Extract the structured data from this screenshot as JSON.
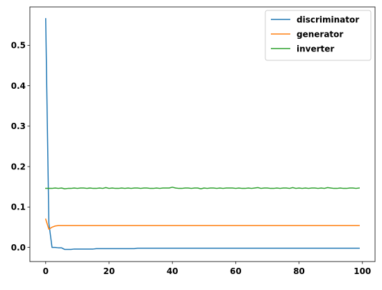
{
  "chart_data": {
    "type": "line",
    "title": "",
    "xlabel": "",
    "ylabel": "",
    "xlim": [
      -5,
      104
    ],
    "ylim": [
      -0.035,
      0.595
    ],
    "x_ticks": [
      0,
      20,
      40,
      60,
      80,
      100
    ],
    "y_ticks": [
      0.0,
      0.1,
      0.2,
      0.3,
      0.4,
      0.5
    ],
    "x_tick_labels": [
      "0",
      "20",
      "40",
      "60",
      "80",
      "100"
    ],
    "y_tick_labels": [
      "0.0",
      "0.1",
      "0.2",
      "0.3",
      "0.4",
      "0.5"
    ],
    "grid": false,
    "legend_position": "top-right",
    "x": [
      0,
      1,
      2,
      3,
      4,
      5,
      6,
      7,
      8,
      9,
      10,
      11,
      12,
      13,
      14,
      15,
      16,
      17,
      18,
      19,
      20,
      21,
      22,
      23,
      24,
      25,
      26,
      27,
      28,
      29,
      30,
      31,
      32,
      33,
      34,
      35,
      36,
      37,
      38,
      39,
      40,
      41,
      42,
      43,
      44,
      45,
      46,
      47,
      48,
      49,
      50,
      51,
      52,
      53,
      54,
      55,
      56,
      57,
      58,
      59,
      60,
      61,
      62,
      63,
      64,
      65,
      66,
      67,
      68,
      69,
      70,
      71,
      72,
      73,
      74,
      75,
      76,
      77,
      78,
      79,
      80,
      81,
      82,
      83,
      84,
      85,
      86,
      87,
      88,
      89,
      90,
      91,
      92,
      93,
      94,
      95,
      96,
      97,
      98,
      99
    ],
    "series": [
      {
        "name": "discriminator",
        "color": "#1f77b4",
        "values": [
          0.566,
          0.06,
          0.0,
          0.0,
          -0.001,
          -0.001,
          -0.005,
          -0.005,
          -0.005,
          -0.004,
          -0.004,
          -0.004,
          -0.004,
          -0.004,
          -0.004,
          -0.004,
          -0.003,
          -0.003,
          -0.003,
          -0.003,
          -0.003,
          -0.003,
          -0.003,
          -0.003,
          -0.003,
          -0.003,
          -0.003,
          -0.003,
          -0.003,
          -0.002,
          -0.002,
          -0.002,
          -0.002,
          -0.002,
          -0.002,
          -0.002,
          -0.002,
          -0.002,
          -0.002,
          -0.002,
          -0.002,
          -0.002,
          -0.002,
          -0.002,
          -0.002,
          -0.002,
          -0.002,
          -0.002,
          -0.002,
          -0.002,
          -0.002,
          -0.002,
          -0.002,
          -0.002,
          -0.002,
          -0.002,
          -0.002,
          -0.002,
          -0.002,
          -0.002,
          -0.002,
          -0.002,
          -0.002,
          -0.002,
          -0.002,
          -0.002,
          -0.002,
          -0.002,
          -0.002,
          -0.002,
          -0.002,
          -0.002,
          -0.002,
          -0.002,
          -0.002,
          -0.002,
          -0.002,
          -0.002,
          -0.002,
          -0.002,
          -0.002,
          -0.002,
          -0.002,
          -0.002,
          -0.002,
          -0.002,
          -0.002,
          -0.002,
          -0.002,
          -0.002,
          -0.002,
          -0.002,
          -0.002,
          -0.002,
          -0.002,
          -0.002,
          -0.002,
          -0.002,
          -0.002,
          -0.002
        ]
      },
      {
        "name": "generator",
        "color": "#ff7f0e",
        "values": [
          0.07,
          0.045,
          0.05,
          0.053,
          0.054,
          0.054,
          0.054,
          0.054,
          0.054,
          0.054,
          0.054,
          0.054,
          0.054,
          0.054,
          0.054,
          0.054,
          0.054,
          0.054,
          0.054,
          0.054,
          0.054,
          0.054,
          0.054,
          0.054,
          0.054,
          0.054,
          0.054,
          0.054,
          0.054,
          0.054,
          0.054,
          0.054,
          0.054,
          0.054,
          0.054,
          0.054,
          0.054,
          0.054,
          0.054,
          0.054,
          0.054,
          0.054,
          0.054,
          0.054,
          0.054,
          0.054,
          0.054,
          0.054,
          0.054,
          0.054,
          0.054,
          0.054,
          0.054,
          0.054,
          0.054,
          0.054,
          0.054,
          0.054,
          0.054,
          0.054,
          0.054,
          0.054,
          0.054,
          0.054,
          0.054,
          0.054,
          0.054,
          0.054,
          0.054,
          0.054,
          0.054,
          0.054,
          0.054,
          0.054,
          0.054,
          0.054,
          0.054,
          0.054,
          0.054,
          0.054,
          0.054,
          0.054,
          0.054,
          0.054,
          0.054,
          0.054,
          0.054,
          0.054,
          0.054,
          0.054,
          0.054,
          0.054,
          0.054,
          0.054,
          0.054,
          0.054,
          0.054,
          0.054,
          0.054,
          0.054
        ]
      },
      {
        "name": "inverter",
        "color": "#2ca02c",
        "values": [
          0.146,
          0.146,
          0.146,
          0.147,
          0.146,
          0.147,
          0.145,
          0.146,
          0.146,
          0.147,
          0.146,
          0.147,
          0.147,
          0.146,
          0.147,
          0.146,
          0.146,
          0.147,
          0.146,
          0.148,
          0.146,
          0.147,
          0.146,
          0.146,
          0.147,
          0.146,
          0.147,
          0.146,
          0.147,
          0.147,
          0.146,
          0.147,
          0.147,
          0.146,
          0.146,
          0.147,
          0.146,
          0.147,
          0.147,
          0.147,
          0.149,
          0.147,
          0.146,
          0.146,
          0.147,
          0.147,
          0.146,
          0.147,
          0.147,
          0.145,
          0.147,
          0.146,
          0.147,
          0.147,
          0.146,
          0.147,
          0.146,
          0.147,
          0.147,
          0.147,
          0.146,
          0.147,
          0.146,
          0.146,
          0.147,
          0.146,
          0.147,
          0.148,
          0.146,
          0.147,
          0.147,
          0.146,
          0.146,
          0.147,
          0.146,
          0.147,
          0.147,
          0.146,
          0.148,
          0.146,
          0.147,
          0.146,
          0.147,
          0.146,
          0.147,
          0.147,
          0.146,
          0.147,
          0.146,
          0.148,
          0.147,
          0.146,
          0.146,
          0.147,
          0.146,
          0.146,
          0.147,
          0.147,
          0.146,
          0.147
        ]
      }
    ]
  }
}
